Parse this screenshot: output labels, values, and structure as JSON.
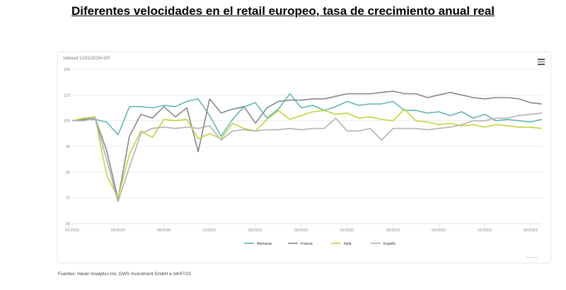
{
  "page": {
    "title": "Diferentes velocidades en el retail europeo, tasa de crecimiento anual real",
    "source": "Fuentes: Haver Analytics Inc, DWS Investment GmbH a 04/07/23",
    "credit": "dws.com"
  },
  "chart_data": {
    "type": "line",
    "subtitle": "Indexed 12/01/2019=100",
    "ylim": [
      60,
      120
    ],
    "y_ticks": [
      60,
      70,
      80,
      90,
      100,
      110,
      120
    ],
    "x_ticks": [
      "01/2020",
      "05/2020",
      "09/2020",
      "01/2021",
      "05/2021",
      "09/2021",
      "01/2022",
      "05/2022",
      "09/2022",
      "01/2023",
      "05/2023"
    ],
    "grid": "horizontal",
    "legend_position": "bottom",
    "x": [
      "01/2020",
      "02/2020",
      "03/2020",
      "04/2020",
      "05/2020",
      "06/2020",
      "07/2020",
      "08/2020",
      "09/2020",
      "10/2020",
      "11/2020",
      "12/2020",
      "01/2021",
      "02/2021",
      "03/2021",
      "04/2021",
      "05/2021",
      "06/2021",
      "07/2021",
      "08/2021",
      "09/2021",
      "10/2021",
      "11/2021",
      "12/2021",
      "01/2022",
      "02/2022",
      "03/2022",
      "04/2022",
      "05/2022",
      "06/2022",
      "07/2022",
      "08/2022",
      "09/2022",
      "10/2022",
      "11/2022",
      "12/2022",
      "01/2023",
      "02/2023",
      "03/2023",
      "04/2023",
      "05/2023",
      "06/2023"
    ],
    "series": [
      {
        "name": "Alemania",
        "color": "#5fb7b3",
        "values": [
          100,
          100.5,
          100.5,
          99.5,
          94.5,
          105.5,
          105.5,
          105,
          106,
          105.5,
          107.5,
          108.5,
          102,
          94,
          100.5,
          105.5,
          107,
          101,
          104.5,
          110.5,
          105,
          106,
          104,
          105.5,
          107.5,
          106,
          106.5,
          106.5,
          107.5,
          104,
          104,
          103,
          103.5,
          102,
          103.5,
          101,
          102.5,
          100,
          100.5,
          100,
          99.5,
          100.5
        ]
      },
      {
        "name": "Francia",
        "color": "#7f8b8a",
        "values": [
          100,
          100.5,
          101,
          88.5,
          69.5,
          94,
          102.5,
          101,
          105.5,
          101.5,
          105,
          88,
          108.5,
          103,
          104.5,
          105.5,
          99,
          105,
          107.5,
          108,
          108,
          108.5,
          108.5,
          109.5,
          110.5,
          110.5,
          110.5,
          111,
          111.5,
          110.5,
          110.5,
          109,
          110,
          111,
          110,
          109,
          108.5,
          109,
          109,
          108.5,
          107,
          106.5
        ]
      },
      {
        "name": "Italia",
        "color": "#bfd635",
        "values": [
          100,
          101,
          101.5,
          79,
          70,
          87,
          96,
          93.5,
          100.5,
          100,
          100.5,
          93,
          95,
          93,
          99,
          97,
          96,
          100.5,
          104,
          100.5,
          102,
          103.5,
          104,
          102.5,
          103,
          101,
          101.5,
          100.5,
          100,
          104.5,
          100,
          99.5,
          98.5,
          99,
          98,
          98.5,
          97.5,
          98.5,
          98,
          97.5,
          97.5,
          97
        ]
      },
      {
        "name": "España",
        "color": "#b2b2b2",
        "values": [
          100,
          100,
          101,
          85,
          68.5,
          82,
          95,
          97,
          97.5,
          97,
          97.5,
          97,
          98,
          92.5,
          96,
          96.5,
          96,
          96.5,
          96.5,
          97,
          96.5,
          97,
          97,
          101,
          96,
          96,
          97,
          92.5,
          97,
          97,
          97,
          96.5,
          97,
          97.5,
          98.5,
          100,
          100,
          101,
          101,
          102,
          102.5,
          103
        ]
      }
    ]
  }
}
